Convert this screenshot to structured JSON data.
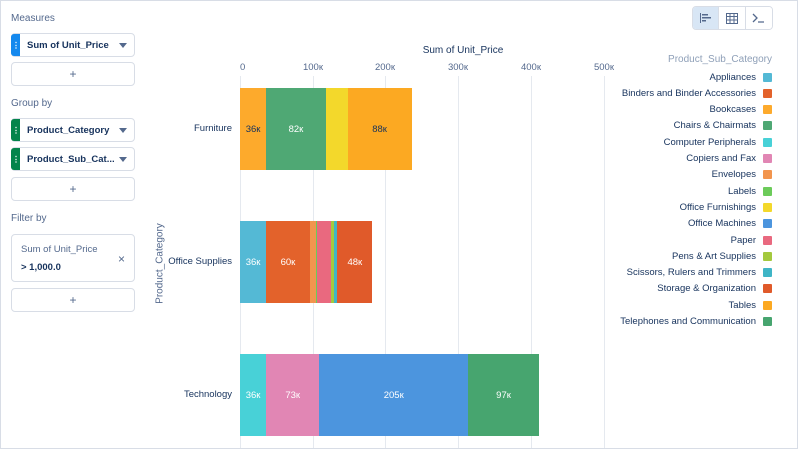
{
  "left_panel": {
    "measures_title": "Measures",
    "measure": {
      "label": "Sum of Unit_Price",
      "color": "#1589ee"
    },
    "groupby_title": "Group by",
    "groups": [
      {
        "label": "Product_Category",
        "color": "#04844b"
      },
      {
        "label": "Product_Sub_Cat...",
        "color": "#04844b"
      }
    ],
    "filter_title": "Filter by",
    "filter": {
      "field": "Sum of Unit_Price",
      "value": "> 1,000.0",
      "close": "×"
    },
    "add_label": "+"
  },
  "toolbar": {
    "buttons": [
      "bar-chart-icon",
      "table-icon",
      "console-icon"
    ],
    "active": 0
  },
  "chart_data": {
    "type": "bar",
    "orientation": "horizontal",
    "stacked": true,
    "title": "Sum of Unit_Price",
    "xlabel": "",
    "ylabel": "Product_Category",
    "xlim": [
      0,
      500000
    ],
    "xticks": [
      "0",
      "100к",
      "200к",
      "300к",
      "400к",
      "500к"
    ],
    "categories": [
      "Furniture",
      "Office Supplies",
      "Technology"
    ],
    "legend_title": "Product_Sub_Category",
    "legend_position": "right",
    "series": [
      {
        "name": "Appliances",
        "color": "#54b9d5",
        "values": [
          0,
          36000,
          0
        ],
        "labels": [
          "",
          "36к",
          ""
        ]
      },
      {
        "name": "Binders and Binder Accessories",
        "color": "#e3622b",
        "values": [
          0,
          60000,
          0
        ],
        "labels": [
          "",
          "60к",
          ""
        ]
      },
      {
        "name": "Bookcases",
        "color": "#fdaa2c",
        "values": [
          36000,
          0,
          0
        ],
        "labels": [
          "36к",
          "",
          ""
        ]
      },
      {
        "name": "Chairs & Chairmats",
        "color": "#4fa874",
        "values": [
          82000,
          0,
          0
        ],
        "labels": [
          "82к",
          "",
          ""
        ]
      },
      {
        "name": "Computer Peripherals",
        "color": "#48d1d7",
        "values": [
          0,
          0,
          36000
        ],
        "labels": [
          "",
          "",
          "36к"
        ]
      },
      {
        "name": "Copiers and Fax",
        "color": "#e186b4",
        "values": [
          0,
          0,
          73000
        ],
        "labels": [
          "",
          "",
          "73к"
        ]
      },
      {
        "name": "Envelopes",
        "color": "#f2954e",
        "values": [
          0,
          9000,
          0
        ],
        "labels": [
          "",
          "",
          ""
        ]
      },
      {
        "name": "Labels",
        "color": "#6ccb5a",
        "values": [
          0,
          1000,
          0
        ],
        "labels": [
          "",
          "",
          ""
        ]
      },
      {
        "name": "Office Furnishings",
        "color": "#f3d82b",
        "values": [
          30000,
          0,
          0
        ],
        "labels": [
          "",
          "",
          ""
        ]
      },
      {
        "name": "Office Machines",
        "color": "#4c95de",
        "values": [
          0,
          0,
          205000
        ],
        "labels": [
          "",
          "",
          "205к"
        ]
      },
      {
        "name": "Paper",
        "color": "#e9697f",
        "values": [
          0,
          19000,
          0
        ],
        "labels": [
          "",
          "",
          ""
        ]
      },
      {
        "name": "Pens & Art Supplies",
        "color": "#a4c93e",
        "values": [
          0,
          4000,
          0
        ],
        "labels": [
          "",
          "",
          ""
        ]
      },
      {
        "name": "Scissors, Rulers and Trimmers",
        "color": "#3fb5c6",
        "values": [
          0,
          5000,
          0
        ],
        "labels": [
          "",
          "",
          ""
        ]
      },
      {
        "name": "Storage & Organization",
        "color": "#e05a2a",
        "values": [
          0,
          48000,
          0
        ],
        "labels": [
          "",
          "48к",
          ""
        ]
      },
      {
        "name": "Tables",
        "color": "#fca922",
        "values": [
          88000,
          0,
          0
        ],
        "labels": [
          "88к",
          "",
          ""
        ]
      },
      {
        "name": "Telephones and Communication",
        "color": "#47a56f",
        "values": [
          0,
          0,
          97000
        ],
        "labels": [
          "",
          "",
          "97к"
        ]
      }
    ]
  }
}
